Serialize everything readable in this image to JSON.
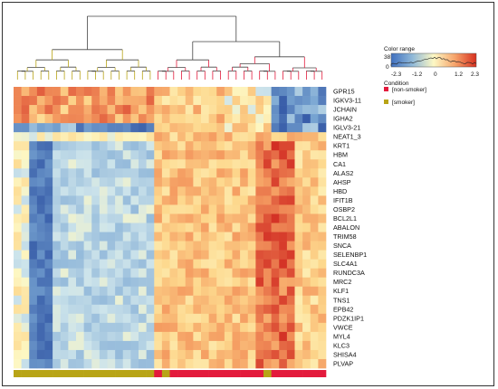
{
  "chart_data": {
    "type": "heatmap",
    "title": "",
    "genes": [
      "GPR15",
      "IGKV3-11",
      "JCHAIN",
      "IGHA2",
      "IGLV3-21",
      "NEAT1_3",
      "KRT1",
      "HBM",
      "CA1",
      "ALAS2",
      "AHSP",
      "HBD",
      "IFIT1B",
      "OSBP2",
      "BCL2L1",
      "ABALON",
      "TRIM58",
      "SNCA",
      "SELENBP1",
      "SLC4A1",
      "RUNDC3A",
      "MRC2",
      "KLF1",
      "TNS1",
      "EPB42",
      "PDZK1IP1",
      "VWCE",
      "MYL4",
      "KLC3",
      "SHISA4",
      "PLVAP"
    ],
    "columns": 40,
    "condition_bar": [
      "smoker",
      "smoker",
      "smoker",
      "smoker",
      "smoker",
      "smoker",
      "smoker",
      "smoker",
      "smoker",
      "smoker",
      "smoker",
      "smoker",
      "smoker",
      "smoker",
      "smoker",
      "smoker",
      "smoker",
      "smoker",
      "non-smoker",
      "smoker",
      "non-smoker",
      "non-smoker",
      "non-smoker",
      "non-smoker",
      "non-smoker",
      "non-smoker",
      "non-smoker",
      "non-smoker",
      "non-smoker",
      "non-smoker",
      "non-smoker",
      "non-smoker",
      "smoker",
      "non-smoker",
      "non-smoker",
      "non-smoker",
      "non-smoker",
      "non-smoker",
      "non-smoker",
      "non-smoker"
    ],
    "color_range": {
      "title": "Color range",
      "min": -2.3,
      "max": 2.3,
      "ticks": [
        "-2.3",
        "-1.2",
        "0",
        "1.2",
        "2.3"
      ],
      "count_max_label": "38",
      "count_min_label": "0",
      "low_color": "#3f6fbf",
      "mid_color": "#fdf8c4",
      "high_color": "#d7301f"
    },
    "condition_legend": {
      "title": "Condition",
      "items": [
        {
          "label": "[non-smoker]",
          "color": "#e31a3c"
        },
        {
          "label": "[smoker]",
          "color": "#b8a416"
        }
      ]
    },
    "legend_position": "top-right",
    "dendrogram": "top"
  }
}
